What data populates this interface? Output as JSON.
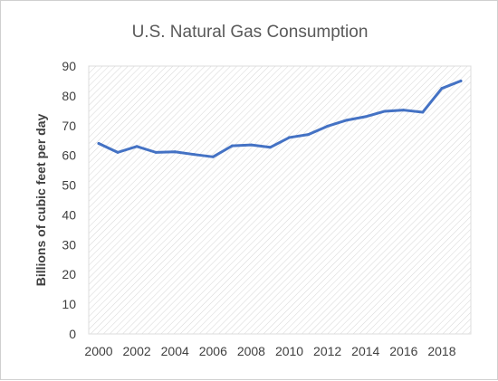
{
  "chart_data": {
    "type": "line",
    "title": "U.S. Natural Gas Consumption",
    "xlabel": "",
    "ylabel": "Billions of cubic feet per day",
    "ylim": [
      0,
      90
    ],
    "yticks": [
      0,
      10,
      20,
      30,
      40,
      50,
      60,
      70,
      80,
      90
    ],
    "xticks": [
      2000,
      2002,
      2004,
      2006,
      2008,
      2010,
      2012,
      2014,
      2016,
      2018
    ],
    "x": [
      2000,
      2001,
      2002,
      2003,
      2004,
      2005,
      2006,
      2007,
      2008,
      2009,
      2010,
      2011,
      2012,
      2013,
      2014,
      2015,
      2016,
      2017,
      2018,
      2019
    ],
    "series": [
      {
        "name": "",
        "values": [
          64.0,
          61.0,
          63.0,
          61.0,
          61.2,
          60.3,
          59.5,
          63.2,
          63.5,
          62.7,
          66.0,
          67.0,
          69.8,
          71.8,
          73.0,
          74.8,
          75.2,
          74.5,
          82.5,
          85.0
        ]
      }
    ],
    "grid": true,
    "legend": "none",
    "colors": {
      "line": "#4472c4",
      "plot_background": "#ffffff",
      "hatch": "#d6d6d6",
      "title": "#595959",
      "text": "#404040"
    }
  }
}
